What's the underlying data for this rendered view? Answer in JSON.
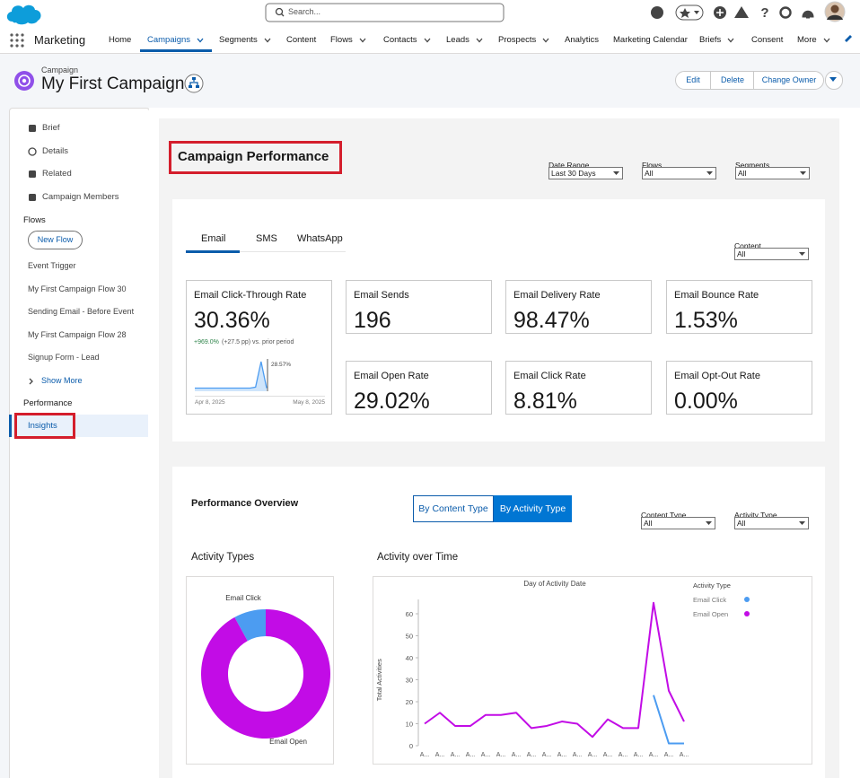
{
  "top_bar": {
    "search_placeholder": "Search..."
  },
  "nav": {
    "app_name": "Marketing",
    "tabs": [
      {
        "label": "Home"
      },
      {
        "label": "Campaigns",
        "menu": true,
        "selected": true
      },
      {
        "label": "Segments",
        "menu": true
      },
      {
        "label": "Content"
      },
      {
        "label": "Flows",
        "menu": true
      },
      {
        "label": "Contacts",
        "menu": true
      },
      {
        "label": "Leads",
        "menu": true
      },
      {
        "label": "Prospects",
        "menu": true
      },
      {
        "label": "Analytics"
      },
      {
        "label": "Marketing Calendar"
      },
      {
        "label": "Briefs",
        "menu": true
      },
      {
        "label": "Consent"
      },
      {
        "label": "More",
        "menu": true
      }
    ]
  },
  "header": {
    "object_type": "Campaign",
    "title": "My First Campaign",
    "actions": [
      "Edit",
      "Delete",
      "Change Owner"
    ]
  },
  "sidebar": {
    "items": [
      "Brief",
      "Details",
      "Related",
      "Campaign Members"
    ],
    "flows_heading": "Flows",
    "new_flow": "New Flow",
    "flows": [
      "Event Trigger",
      "My First Campaign Flow 30",
      "Sending Email - Before Event",
      "My First Campaign Flow 28",
      "Signup Form - Lead"
    ],
    "show_more": "Show More",
    "performance_heading": "Performance",
    "performance_items": [
      "Insights"
    ]
  },
  "dashboard": {
    "title": "Campaign Performance",
    "filters": [
      {
        "label": "Date Range",
        "value": "Last 30 Days"
      },
      {
        "label": "Flows",
        "value": "All"
      },
      {
        "label": "Segments",
        "value": "All"
      }
    ],
    "channel_tabs": [
      "Email",
      "SMS",
      "WhatsApp"
    ],
    "content_filter": {
      "label": "Content",
      "value": "All"
    },
    "kpis": [
      {
        "label": "Email Click-Through Rate",
        "value": "30.36%",
        "change": "+969.0%",
        "change_note": "(+27.5 pp) vs. prior period"
      },
      {
        "label": "Email Sends",
        "value": "196"
      },
      {
        "label": "Email Delivery Rate",
        "value": "98.47%"
      },
      {
        "label": "Email Bounce Rate",
        "value": "1.53%"
      },
      {
        "label": "Email Open Rate",
        "value": "29.02%"
      },
      {
        "label": "Email Click Rate",
        "value": "8.81%"
      },
      {
        "label": "Email Opt-Out Rate",
        "value": "0.00%"
      }
    ],
    "sparkline": {
      "type": "line",
      "values": [
        3,
        3,
        3,
        3,
        3,
        3,
        3,
        3,
        3,
        3,
        3,
        4,
        28.57,
        3
      ],
      "peak_label": "28.57%",
      "start_label": "Apr 8, 2025",
      "end_label": "May 8, 2025",
      "color": "#4c9cf1"
    }
  },
  "overview": {
    "title": "Performance Overview",
    "toggle": [
      "By Content Type",
      "By Activity Type"
    ],
    "filters": [
      {
        "label": "Content Type",
        "value": "All"
      },
      {
        "label": "Activity Type",
        "value": "All"
      }
    ],
    "donut": {
      "type": "pie",
      "title": "Activity Types",
      "categories": [
        "Email Click",
        "Email Open"
      ],
      "values": [
        8,
        92
      ],
      "colors": [
        "#4c9cf1",
        "#c20ce6"
      ]
    },
    "line": {
      "type": "line",
      "title": "Activity over Time",
      "subtitle": "Day of Activity Date",
      "y_label": "Total Activities",
      "legend_title": "Activity Type",
      "categories": [
        "A...",
        "A...",
        "A...",
        "A...",
        "A...",
        "A...",
        "A...",
        "A...",
        "A...",
        "A...",
        "A...",
        "A...",
        "A...",
        "A...",
        "A...",
        "A...",
        "A...",
        "A..."
      ],
      "series": [
        {
          "name": "Email Click",
          "color": "#4c9cf1",
          "values": [
            null,
            null,
            null,
            null,
            null,
            null,
            null,
            null,
            null,
            null,
            null,
            null,
            null,
            null,
            null,
            23,
            1,
            1
          ]
        },
        {
          "name": "Email Open",
          "color": "#c20ce6",
          "values": [
            10,
            15,
            9,
            9,
            14,
            14,
            15,
            8,
            9,
            11,
            10,
            4,
            12,
            8,
            8,
            65,
            25,
            11
          ]
        }
      ],
      "ylim": [
        0,
        68
      ],
      "yticks": [
        0,
        10,
        20,
        30,
        40,
        50,
        60
      ]
    }
  }
}
